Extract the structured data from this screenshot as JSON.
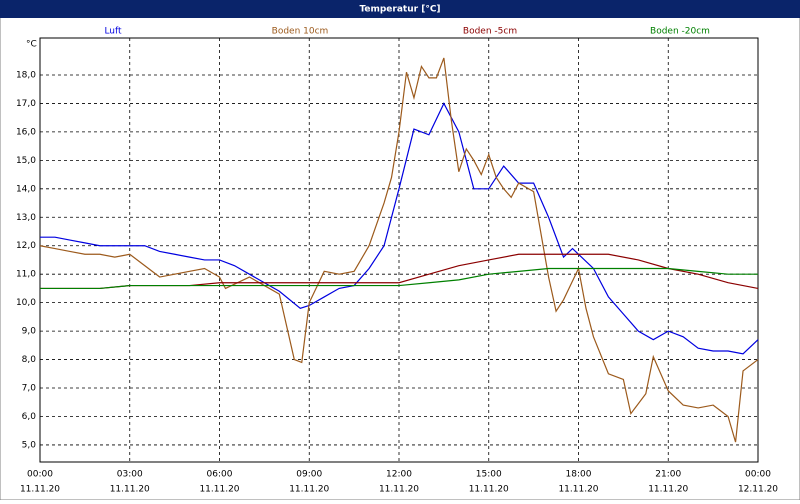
{
  "chart_data": {
    "type": "line",
    "title": "Temperatur [°C]",
    "y_unit": "°C",
    "xlim": [
      0,
      24
    ],
    "ylim": [
      4.4,
      19.3
    ],
    "xticks": [
      {
        "value": 0,
        "label": "00:00"
      },
      {
        "value": 3,
        "label": "03:00"
      },
      {
        "value": 6,
        "label": "06:00"
      },
      {
        "value": 9,
        "label": "09:00"
      },
      {
        "value": 12,
        "label": "12:00"
      },
      {
        "value": 15,
        "label": "15:00"
      },
      {
        "value": 18,
        "label": "18:00"
      },
      {
        "value": 21,
        "label": "21:00"
      },
      {
        "value": 24,
        "label": "00:00"
      }
    ],
    "xtick_dates": [
      "11.11.20",
      "11.11.20",
      "11.11.20",
      "11.11.20",
      "11.11.20",
      "11.11.20",
      "11.11.20",
      "11.11.20",
      "12.11.20"
    ],
    "yticks": [
      {
        "value": 5,
        "label": "5,0"
      },
      {
        "value": 6,
        "label": "6,0"
      },
      {
        "value": 7,
        "label": "7,0"
      },
      {
        "value": 8,
        "label": "8,0"
      },
      {
        "value": 9,
        "label": "9,0"
      },
      {
        "value": 10,
        "label": "10,0"
      },
      {
        "value": 11,
        "label": "11,0"
      },
      {
        "value": 12,
        "label": "12,0"
      },
      {
        "value": 13,
        "label": "13,0"
      },
      {
        "value": 14,
        "label": "14,0"
      },
      {
        "value": 15,
        "label": "15,0"
      },
      {
        "value": 16,
        "label": "16,0"
      },
      {
        "value": 17,
        "label": "17,0"
      },
      {
        "value": 18,
        "label": "18,0"
      }
    ],
    "grid": true,
    "series": [
      {
        "name": "Luft",
        "color": "#0000e0",
        "x": [
          0,
          0.5,
          1,
          1.5,
          2,
          2.5,
          3,
          3.5,
          4,
          4.5,
          5,
          5.5,
          6,
          6.5,
          7,
          7.5,
          8,
          8.7,
          9,
          9.5,
          10,
          10.5,
          11,
          11.5,
          12,
          12.5,
          13,
          13.5,
          14,
          14.5,
          15,
          15.5,
          16,
          16.5,
          17,
          17.5,
          17.8,
          18.5,
          19,
          19.5,
          20,
          20.5,
          21,
          21.5,
          22,
          22.5,
          23,
          23.5,
          24
        ],
        "values": [
          12.3,
          12.3,
          12.2,
          12.1,
          12.0,
          12.0,
          12.0,
          12.0,
          11.8,
          11.7,
          11.6,
          11.5,
          11.5,
          11.3,
          11.0,
          10.7,
          10.4,
          9.8,
          9.9,
          10.2,
          10.5,
          10.6,
          11.2,
          12.0,
          14.0,
          16.1,
          15.9,
          17.0,
          16.0,
          14.0,
          14.0,
          14.8,
          14.2,
          14.2,
          13.0,
          11.6,
          11.9,
          11.2,
          10.2,
          9.6,
          9.0,
          8.7,
          9.0,
          8.8,
          8.4,
          8.3,
          8.3,
          8.2,
          8.7
        ]
      },
      {
        "name": "Boden 10cm",
        "color": "#9c5a1c",
        "x": [
          0,
          0.5,
          1,
          1.5,
          2,
          2.5,
          3,
          3.5,
          4,
          4.5,
          5,
          5.5,
          6,
          6.2,
          7,
          7.5,
          8,
          8.5,
          8.75,
          9,
          9.5,
          10,
          10.5,
          11,
          11.5,
          11.75,
          12,
          12.25,
          12.5,
          12.75,
          13,
          13.25,
          13.5,
          13.75,
          14,
          14.25,
          14.5,
          14.75,
          15,
          15.25,
          15.5,
          15.75,
          16,
          16.5,
          17,
          17.25,
          17.5,
          18,
          18.25,
          18.5,
          19,
          19.5,
          19.75,
          20.25,
          20.5,
          21,
          21.5,
          22,
          22.5,
          23,
          23.25,
          23.5,
          24
        ],
        "values": [
          12.0,
          11.9,
          11.8,
          11.7,
          11.7,
          11.6,
          11.7,
          11.3,
          10.9,
          11.0,
          11.1,
          11.2,
          10.9,
          10.5,
          10.9,
          10.6,
          10.3,
          8.0,
          7.9,
          10.0,
          11.1,
          11.0,
          11.1,
          12.0,
          13.5,
          14.4,
          16.0,
          18.1,
          17.2,
          18.3,
          17.9,
          17.9,
          18.6,
          16.4,
          14.6,
          15.4,
          15.0,
          14.5,
          15.2,
          14.4,
          14.0,
          13.7,
          14.2,
          13.9,
          10.9,
          9.7,
          10.1,
          11.2,
          9.8,
          8.8,
          7.5,
          7.3,
          6.1,
          6.8,
          8.1,
          6.9,
          6.4,
          6.3,
          6.4,
          6.0,
          5.1,
          7.6,
          8.0
        ]
      },
      {
        "name": "Boden -5cm",
        "color": "#8b0000",
        "x": [
          0,
          1,
          2,
          3,
          4,
          5,
          6,
          7,
          8,
          9,
          10,
          11,
          12,
          13,
          14,
          15,
          16,
          17,
          18,
          19,
          20,
          21,
          22,
          23,
          24
        ],
        "values": [
          10.5,
          10.5,
          10.5,
          10.6,
          10.6,
          10.6,
          10.7,
          10.7,
          10.7,
          10.7,
          10.7,
          10.7,
          10.7,
          11.0,
          11.3,
          11.5,
          11.7,
          11.7,
          11.7,
          11.7,
          11.5,
          11.2,
          11.0,
          10.7,
          10.5
        ]
      },
      {
        "name": "Boden -20cm",
        "color": "#008000",
        "x": [
          0,
          1,
          2,
          3,
          4,
          5,
          6,
          7,
          8,
          9,
          10,
          11,
          12,
          13,
          14,
          15,
          16,
          17,
          18,
          19,
          20,
          21,
          22,
          23,
          24
        ],
        "values": [
          10.5,
          10.5,
          10.5,
          10.6,
          10.6,
          10.6,
          10.6,
          10.6,
          10.6,
          10.6,
          10.6,
          10.6,
          10.6,
          10.7,
          10.8,
          11.0,
          11.1,
          11.2,
          11.2,
          11.2,
          11.2,
          11.2,
          11.1,
          11.0,
          11.0
        ]
      }
    ]
  }
}
